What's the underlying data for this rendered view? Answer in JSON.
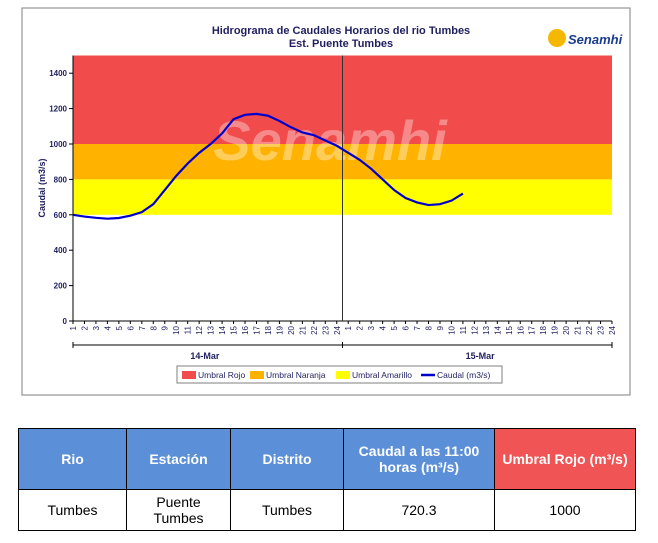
{
  "chart_data": {
    "type": "line",
    "title": "Hidrograma de Caudales Horarios del rio Tumbes",
    "subtitle": "Est. Puente Tumbes",
    "logo": "Senamhi",
    "y_label": "Caudal  (m3/s)",
    "ylim": [
      0,
      1500
    ],
    "yticks": [
      0,
      200,
      400,
      600,
      800,
      1000,
      1200,
      1400
    ],
    "categories": [
      "1",
      "2",
      "3",
      "4",
      "5",
      "6",
      "7",
      "8",
      "9",
      "10",
      "11",
      "12",
      "13",
      "14",
      "15",
      "16",
      "17",
      "18",
      "19",
      "20",
      "21",
      "22",
      "23",
      "24",
      "1",
      "2",
      "3",
      "4",
      "5",
      "6",
      "7",
      "8",
      "9",
      "10",
      "11",
      "12",
      "13",
      "14",
      "15",
      "16",
      "17",
      "18",
      "19",
      "20",
      "21",
      "22",
      "23",
      "24"
    ],
    "days": [
      "14-Mar",
      "15-Mar"
    ],
    "bands": [
      {
        "name": "Umbral Rojo",
        "color": "#f24b4b",
        "from": 1000,
        "to": 1500
      },
      {
        "name": "Umbral Naranja",
        "color": "#ffb300",
        "from": 800,
        "to": 1000
      },
      {
        "name": "Umbral Amarillo",
        "color": "#ffff00",
        "from": 600,
        "to": 800
      }
    ],
    "series": [
      {
        "name": "Caudal (m3/s)",
        "color": "#0000cc",
        "values": [
          600,
          590,
          583,
          578,
          582,
          595,
          615,
          660,
          740,
          820,
          890,
          950,
          1000,
          1060,
          1140,
          1165,
          1170,
          1160,
          1130,
          1095,
          1065,
          1050,
          1020,
          990,
          950,
          910,
          860,
          800,
          740,
          695,
          670,
          655,
          660,
          680,
          720.3,
          null,
          null,
          null,
          null,
          null,
          null,
          null,
          null,
          null,
          null,
          null,
          null,
          null
        ]
      }
    ]
  },
  "table": {
    "header": [
      "Rio",
      "Estación",
      "Distrito",
      "Caudal a las 11:00 horas (m³/s)",
      "Umbral Rojo (m³/s)"
    ],
    "rows": [
      [
        "Tumbes",
        "Puente Tumbes",
        "Tumbes",
        "720.3",
        "1000"
      ]
    ]
  }
}
